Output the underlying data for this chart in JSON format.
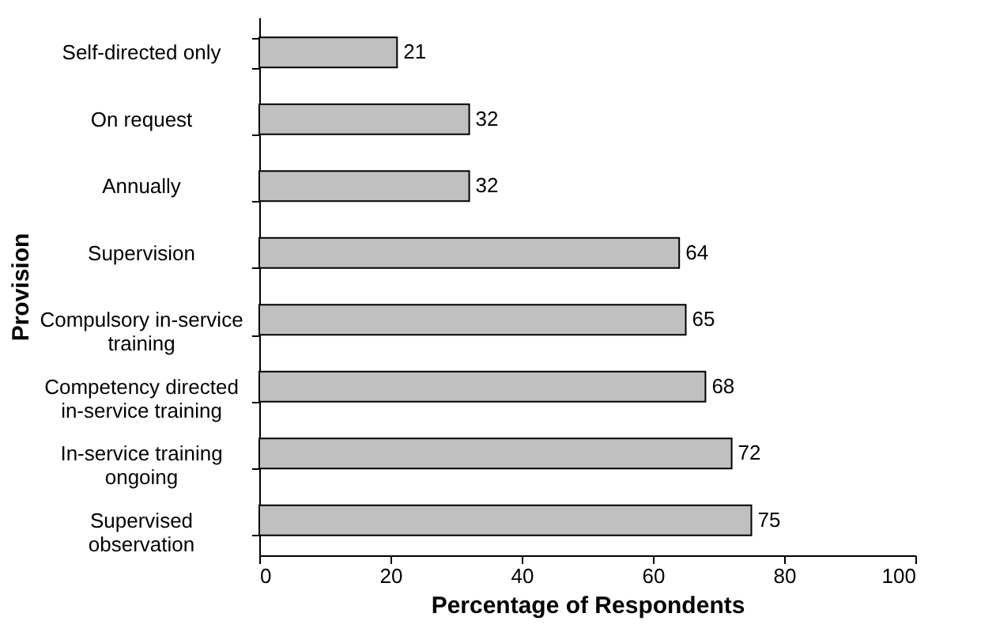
{
  "chart_data": {
    "type": "bar",
    "orientation": "horizontal",
    "categories": [
      "Self-directed only",
      "On request",
      "Annually",
      "Supervision",
      "Compulsory in-service\ntraining",
      "Competency directed\nin-service training",
      "In-service training\nongoing",
      "Supervised\nobservation"
    ],
    "values": [
      21,
      32,
      32,
      64,
      65,
      68,
      72,
      75
    ],
    "color": "#c0c0c0",
    "xlim": [
      0,
      100
    ],
    "xticks": [
      0,
      20,
      40,
      60,
      80,
      100
    ],
    "xlabel": "Percentage of Respondents",
    "ylabel": "Provision",
    "data_labels": true,
    "grid": false
  }
}
